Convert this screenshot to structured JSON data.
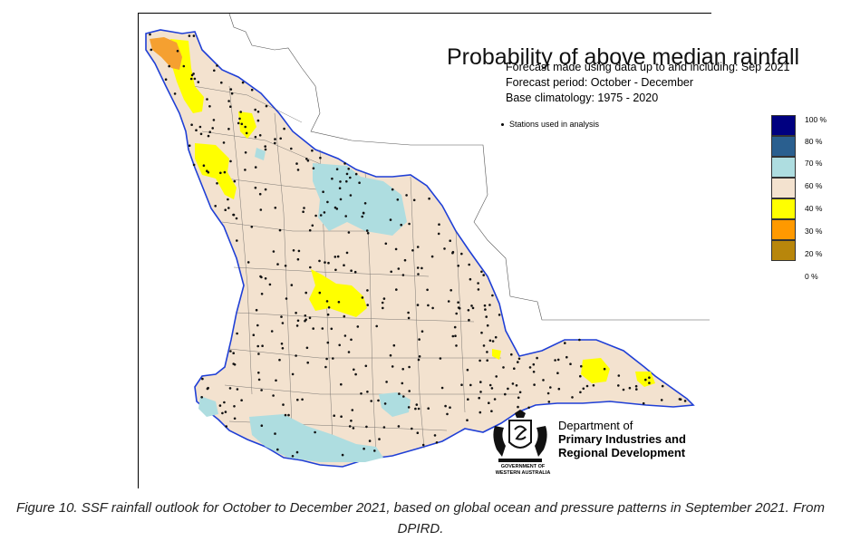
{
  "map": {
    "title": "Probability of above median rainfall",
    "forecast_made": "Forecast made using data up to and including: Sep 2021",
    "forecast_period": "Forecast period: October - December",
    "base_climatology": "Base climatology: 1975 - 2020",
    "stations_note": "Stations used in analysis"
  },
  "legend": {
    "items": [
      {
        "color": "#000080",
        "label": "100 %"
      },
      {
        "color": "#2a5f8f",
        "label": "80 %"
      },
      {
        "color": "#aedde0",
        "label": "70 %"
      },
      {
        "color": "#f3e2cf",
        "label": "60 %"
      },
      {
        "color": "#ffff00",
        "label": "40 %"
      },
      {
        "color": "#ff9900",
        "label": "30 %"
      },
      {
        "color": "#b8860b",
        "label": "20 %"
      }
    ],
    "bottom_label": "0 %"
  },
  "colors": {
    "land": "#f3e2cf",
    "coast": "#1f3fd6",
    "yellow": "#ffff00",
    "orange": "#f5a030",
    "lightblue": "#aedde0"
  },
  "logo": {
    "dept_line1": "Department of",
    "dept_line2": "Primary Industries and",
    "dept_line3": "Regional Development",
    "gov_text": "GOVERNMENT OF\nWESTERN AUSTRALIA",
    "crest_icon": "wa-coat-of-arms-icon"
  },
  "caption": {
    "text": "Figure 10. SSF rainfall outlook for October to December 2021, based on global ocean and pressure patterns in September 2021. From DPIRD."
  }
}
